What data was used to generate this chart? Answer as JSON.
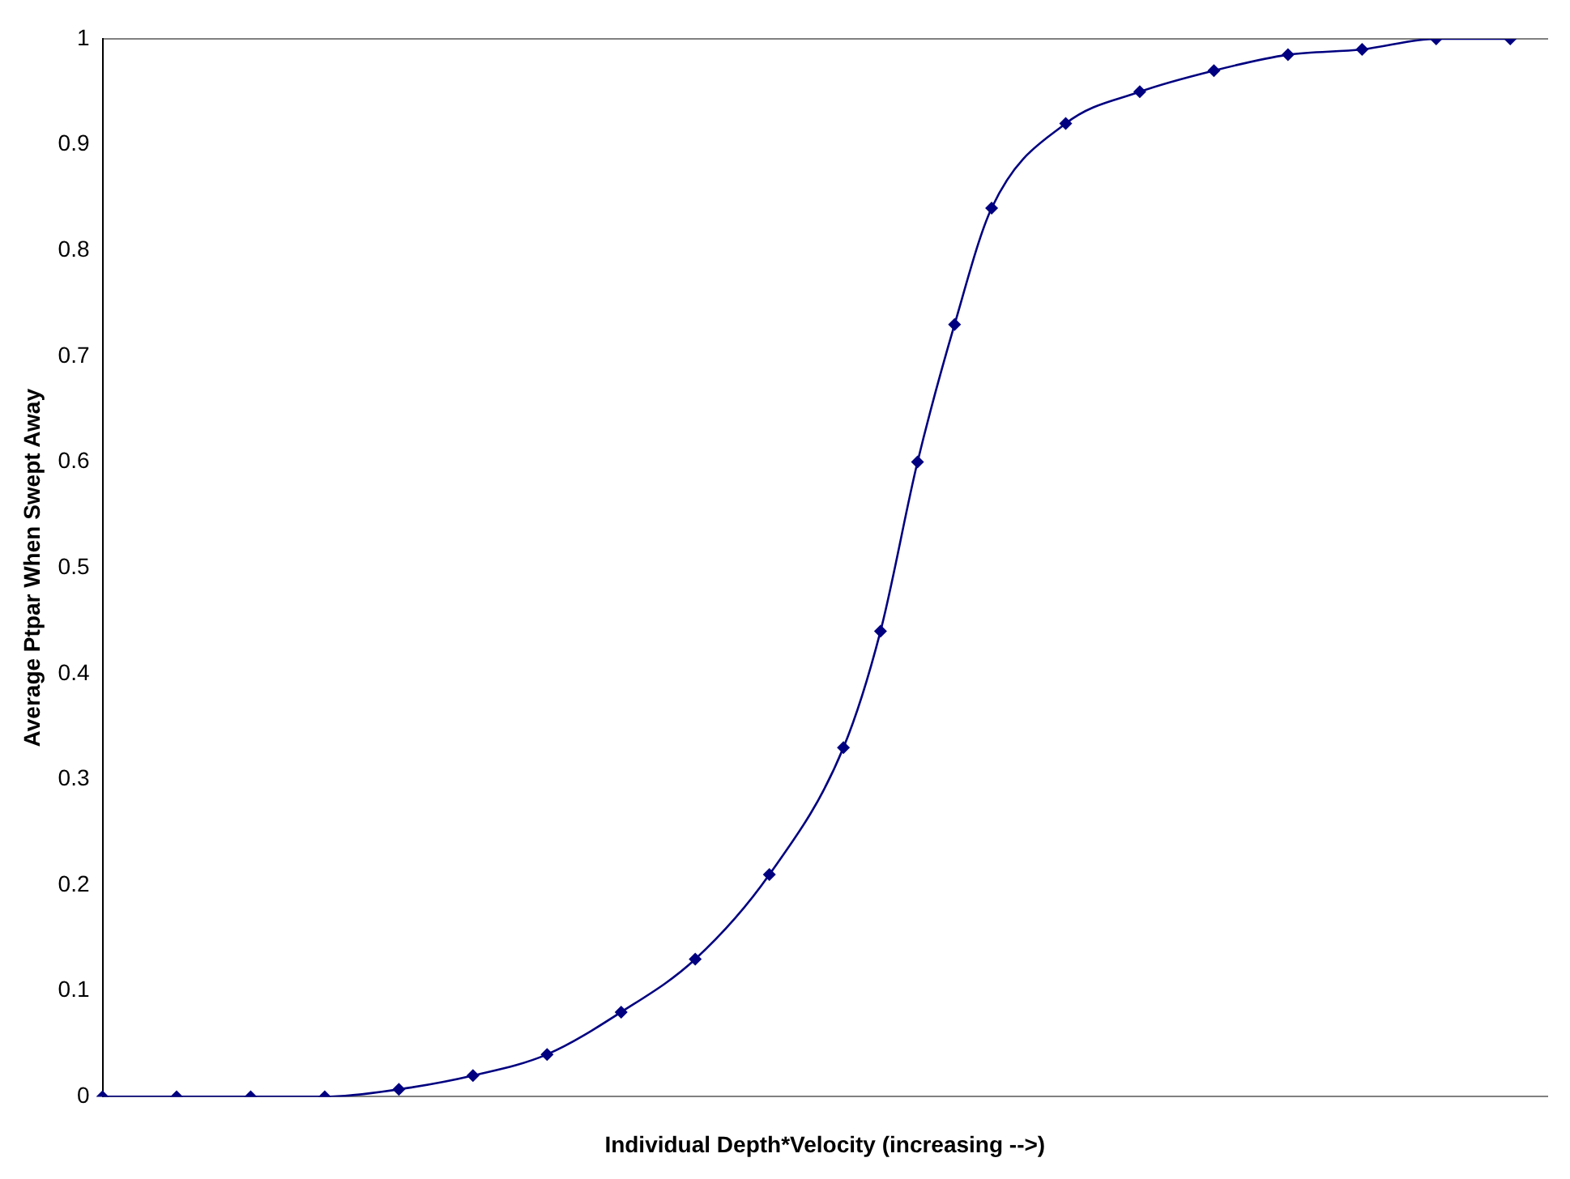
{
  "chart_data": {
    "type": "line",
    "xlabel": "Individual Depth*Velocity (increasing -->)",
    "ylabel": "Average Ptpar When Swept Away",
    "categories": [
      null,
      null,
      null,
      null,
      null,
      null,
      null,
      null,
      null,
      null,
      null,
      null,
      null,
      null,
      null,
      null,
      null,
      null,
      null,
      null,
      null,
      null,
      null,
      null,
      null,
      null,
      null,
      null,
      null,
      null,
      null,
      null,
      null,
      null,
      null,
      null,
      null,
      null,
      null,
      null
    ],
    "series": [
      {
        "color": "#000080",
        "values": [
          0,
          null,
          0,
          null,
          0,
          null,
          0,
          null,
          0.007,
          null,
          0.02,
          null,
          0.04,
          null,
          0.08,
          null,
          0.13,
          null,
          0.21,
          null,
          0.33,
          0.44,
          0.6,
          0.73,
          0.84,
          null,
          0.92,
          null,
          0.95,
          null,
          0.97,
          null,
          0.985,
          null,
          0.99,
          null,
          1,
          null,
          1,
          null
        ]
      }
    ],
    "ylim": [
      0,
      1
    ],
    "yticks": [
      0,
      0.1,
      0.2,
      0.3,
      0.4,
      0.5,
      0.6,
      0.7,
      0.8,
      0.9,
      1
    ],
    "grid": false,
    "legend": false,
    "marker": "diamond",
    "line_style": "solid",
    "tick_labels": "y"
  }
}
